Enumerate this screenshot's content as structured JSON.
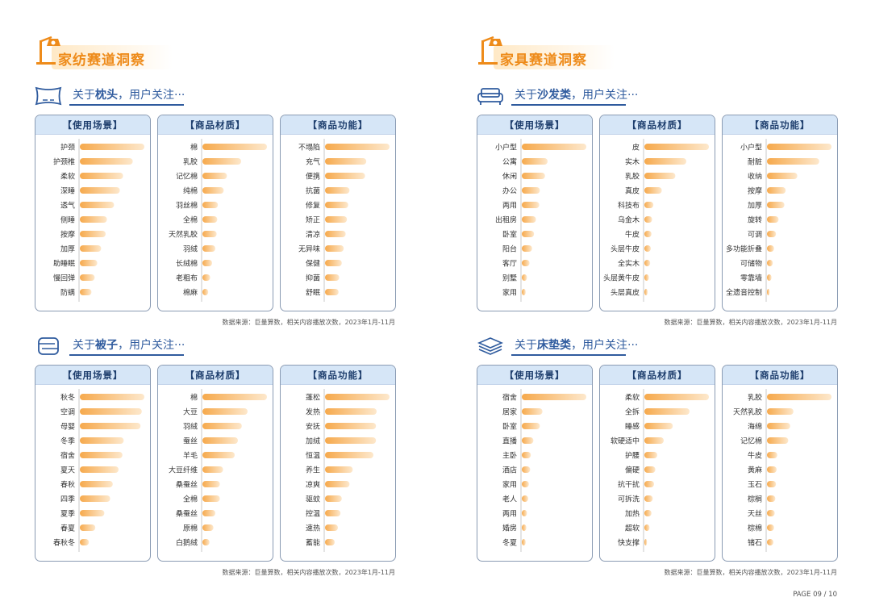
{
  "page": {
    "number": "PAGE 09 / 10"
  },
  "colors": {
    "accent": "#ee8b1a",
    "navy": "#2f5b9e",
    "bar_start": "#f6a94c",
    "bar_end": "#fde8cc",
    "panel_head": "#d6e6f7"
  },
  "sections": [
    {
      "title": "家纺赛道洞察",
      "groups": [
        {
          "icon": "pillow-icon",
          "prefix": "关于",
          "topic": "枕头",
          "suffix": "，用户关注···",
          "source": "数据来源：巨量算数，相关内容播放次数，2023年1月-11月",
          "chart_data": [
            {
              "type": "bar",
              "title": "【使用场景】",
              "categories": [
                "护颈",
                "护颈椎",
                "柔软",
                "深睡",
                "透气",
                "侧睡",
                "按摩",
                "加厚",
                "助睡眠",
                "慢回弹",
                "防螨"
              ],
              "values": [
                100,
                82,
                67,
                62,
                53,
                42,
                40,
                33,
                27,
                23,
                18
              ]
            },
            {
              "type": "bar",
              "title": "【商品材质】",
              "categories": [
                "棉",
                "乳胶",
                "记忆棉",
                "纯棉",
                "羽丝棉",
                "全棉",
                "天然乳胶",
                "羽绒",
                "长绒棉",
                "老粗布",
                "棉麻"
              ],
              "values": [
                100,
                60,
                38,
                33,
                24,
                23,
                22,
                20,
                15,
                12,
                9
              ]
            },
            {
              "type": "bar",
              "title": "【商品功能】",
              "categories": [
                "不塌陷",
                "充气",
                "便携",
                "抗菌",
                "修复",
                "矫正",
                "清凉",
                "无异味",
                "保健",
                "抑菌",
                "舒眠"
              ],
              "values": [
                100,
                64,
                62,
                38,
                36,
                34,
                32,
                29,
                26,
                22,
                21
              ]
            }
          ]
        },
        {
          "icon": "quilt-icon",
          "prefix": "关于",
          "topic": "被子",
          "suffix": "，用户关注···",
          "source": "数据来源：巨量算数，相关内容播放次数，2023年1月-11月",
          "chart_data": [
            {
              "type": "bar",
              "title": "【使用场景】",
              "categories": [
                "秋冬",
                "空调",
                "母婴",
                "冬季",
                "宿舍",
                "夏天",
                "春秋",
                "四季",
                "夏季",
                "春夏",
                "春秋冬"
              ],
              "values": [
                100,
                96,
                94,
                68,
                66,
                60,
                51,
                47,
                38,
                24,
                14
              ]
            },
            {
              "type": "bar",
              "title": "【商品材质】",
              "categories": [
                "棉",
                "大豆",
                "羽绒",
                "蚕丝",
                "羊毛",
                "大豆纤维",
                "桑蚕丝",
                "全棉",
                "桑蚕丝",
                "原棉",
                "白鹅绒"
              ],
              "values": [
                100,
                70,
                61,
                55,
                50,
                32,
                27,
                27,
                20,
                17,
                11
              ]
            },
            {
              "type": "bar",
              "title": "【商品功能】",
              "categories": [
                "蓬松",
                "发热",
                "安抚",
                "加绒",
                "恒温",
                "养生",
                "凉爽",
                "驱蚊",
                "控温",
                "速热",
                "蓄能"
              ],
              "values": [
                100,
                80,
                79,
                79,
                75,
                43,
                38,
                26,
                24,
                20,
                15
              ]
            }
          ]
        }
      ]
    },
    {
      "title": "家具赛道洞察",
      "groups": [
        {
          "icon": "sofa-icon",
          "prefix": "关于",
          "topic": "沙发类",
          "suffix": "，用户关注···",
          "source": "数据来源：巨量算数，相关内容播放次数，2023年1月-11月",
          "chart_data": [
            {
              "type": "bar",
              "title": "【使用场景】",
              "categories": [
                "小户型",
                "公寓",
                "休闲",
                "办公",
                "两用",
                "出租房",
                "卧室",
                "阳台",
                "客厅",
                "别墅",
                "家用"
              ],
              "values": [
                100,
                40,
                36,
                28,
                27,
                22,
                19,
                16,
                12,
                8,
                6
              ]
            },
            {
              "type": "bar",
              "title": "【商品材质】",
              "categories": [
                "皮",
                "实木",
                "乳胶",
                "真皮",
                "科技布",
                "乌金木",
                "牛皮",
                "头层牛皮",
                "全实木",
                "头层黄牛皮",
                "头层真皮"
              ],
              "values": [
                100,
                65,
                48,
                27,
                14,
                12,
                11,
                10,
                9,
                7,
                5
              ]
            },
            {
              "type": "bar",
              "title": "【商品功能】",
              "categories": [
                "小户型",
                "耐脏",
                "收纳",
                "按摩",
                "加厚",
                "旋转",
                "可调",
                "多功能折叠",
                "可储物",
                "零靠墙",
                "全遗音控制"
              ],
              "values": [
                100,
                81,
                47,
                29,
                27,
                18,
                14,
                11,
                9,
                7,
                4
              ]
            }
          ]
        },
        {
          "icon": "mattress-icon",
          "prefix": "关于",
          "topic": "床垫类",
          "suffix": "，用户关注···",
          "source": "数据来源：巨量算数，相关内容播放次数，2023年1月-11月",
          "chart_data": [
            {
              "type": "bar",
              "title": "【使用场景】",
              "categories": [
                "宿舍",
                "居家",
                "卧室",
                "直播",
                "主卧",
                "酒店",
                "家用",
                "老人",
                "两用",
                "婚房",
                "冬夏"
              ],
              "values": [
                100,
                32,
                28,
                18,
                14,
                13,
                11,
                10,
                8,
                7,
                6
              ]
            },
            {
              "type": "bar",
              "title": "【商品材质】",
              "categories": [
                "柔软",
                "全拆",
                "睡感",
                "软硬适中",
                "护腰",
                "偏硬",
                "抗干扰",
                "可拆洗",
                "加热",
                "超软",
                "快支撑"
              ],
              "values": [
                100,
                70,
                44,
                30,
                20,
                17,
                15,
                13,
                11,
                8,
                4
              ]
            },
            {
              "type": "bar",
              "title": "【商品功能】",
              "categories": [
                "乳胶",
                "天然乳胶",
                "海绵",
                "记忆棉",
                "牛皮",
                "黄麻",
                "玉石",
                "棕榈",
                "天丝",
                "棕棉",
                "锗石"
              ],
              "values": [
                100,
                41,
                36,
                33,
                16,
                15,
                14,
                13,
                12,
                11,
                10
              ]
            }
          ]
        }
      ]
    }
  ]
}
